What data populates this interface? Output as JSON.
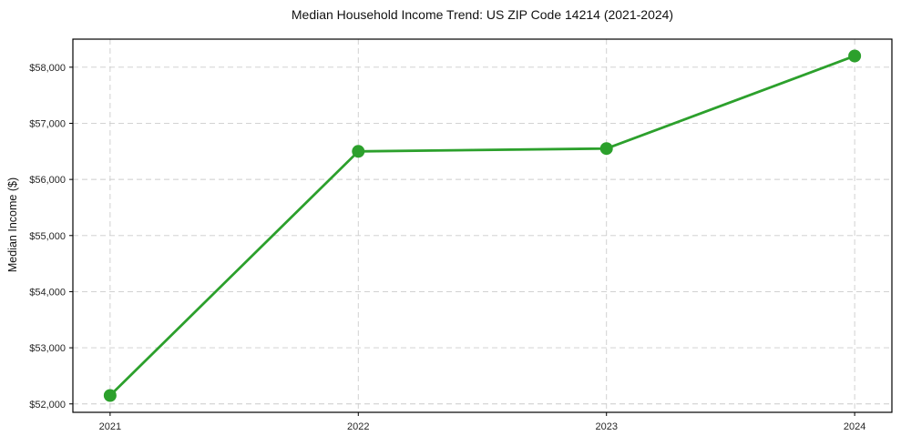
{
  "chart_data": {
    "type": "line",
    "title": "Median Household Income Trend: US ZIP Code 14214 (2021-2024)",
    "xlabel": "",
    "ylabel": "Median Income ($)",
    "x": [
      2021,
      2022,
      2023,
      2024
    ],
    "x_tick_labels": [
      "2021",
      "2022",
      "2023",
      "2024"
    ],
    "series": [
      {
        "name": "Median Household Income",
        "values": [
          52150,
          56500,
          56550,
          58200
        ]
      }
    ],
    "y_ticks": [
      52000,
      53000,
      54000,
      55000,
      56000,
      57000,
      58000
    ],
    "y_tick_labels": [
      "$52,000",
      "$53,000",
      "$54,000",
      "$55,000",
      "$56,000",
      "$57,000",
      "$58,000"
    ],
    "xlim": [
      2020.85,
      2024.15
    ],
    "ylim": [
      51850,
      58500
    ],
    "grid": "dashed-both",
    "legend": "none",
    "colors": {
      "line": "#2ca02c",
      "marker": "#2ca02c",
      "grid": "#cccccc",
      "axis": "#000000",
      "tick_text": "#262626",
      "background": "#ffffff"
    }
  }
}
